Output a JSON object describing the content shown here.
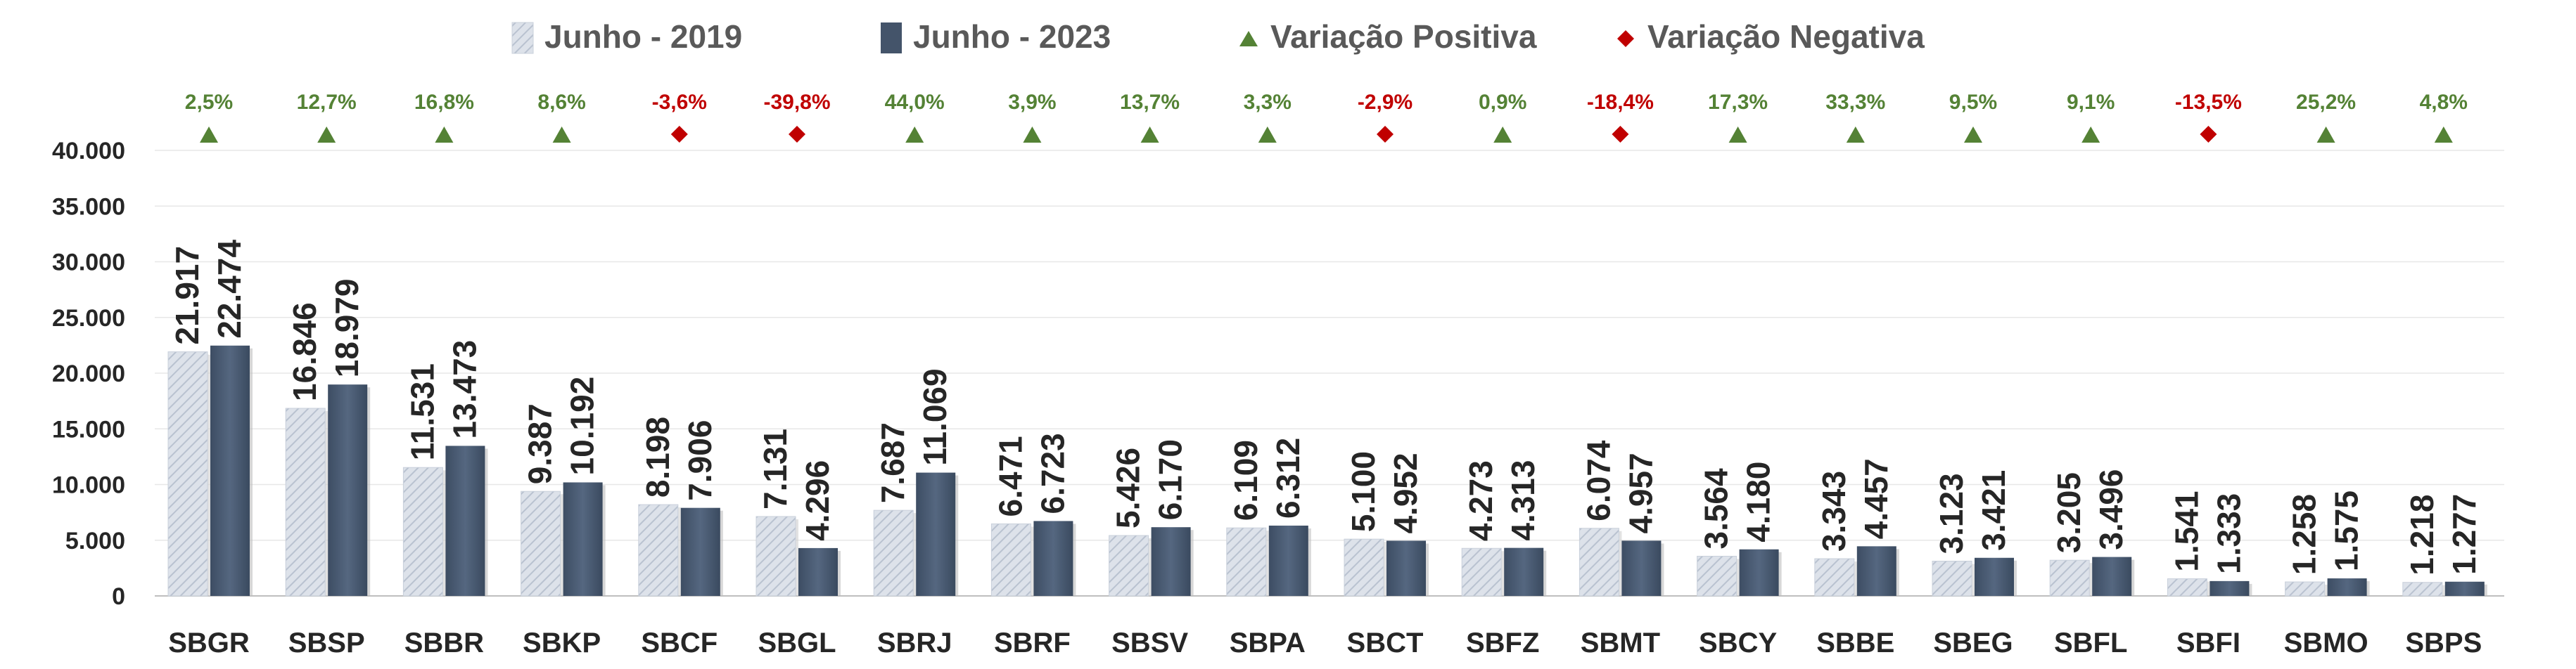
{
  "chart_data": {
    "type": "bar",
    "categories": [
      "SBGR",
      "SBSP",
      "SBBR",
      "SBKP",
      "SBCF",
      "SBGL",
      "SBRJ",
      "SBRF",
      "SBSV",
      "SBPA",
      "SBCT",
      "SBFZ",
      "SBMT",
      "SBCY",
      "SBBE",
      "SBEG",
      "SBFL",
      "SBFI",
      "SBMO",
      "SBPS"
    ],
    "series": [
      {
        "name": "Junho - 2019",
        "values": [
          21917,
          16846,
          11531,
          9387,
          8198,
          7131,
          7687,
          6471,
          5426,
          6109,
          5100,
          4273,
          6074,
          3564,
          3343,
          3123,
          3205,
          1541,
          1258,
          1218
        ],
        "labels": [
          "21.917",
          "16.846",
          "11.531",
          "9.387",
          "8.198",
          "7.131",
          "7.687",
          "6.471",
          "5.426",
          "6.109",
          "5.100",
          "4.273",
          "6.074",
          "3.564",
          "3.343",
          "3.123",
          "3.205",
          "1.541",
          "1.258",
          "1.218"
        ]
      },
      {
        "name": "Junho - 2023",
        "values": [
          22474,
          18979,
          13473,
          10192,
          7906,
          4296,
          11069,
          6723,
          6170,
          6312,
          4952,
          4313,
          4957,
          4180,
          4457,
          3421,
          3496,
          1333,
          1575,
          1277
        ],
        "labels": [
          "22.474",
          "18.979",
          "13.473",
          "10.192",
          "7.906",
          "4.296",
          "11.069",
          "6.723",
          "6.170",
          "6.312",
          "4.952",
          "4.313",
          "4.957",
          "4.180",
          "4.457",
          "3.421",
          "3.496",
          "1.333",
          "1.575",
          "1.277"
        ]
      }
    ],
    "variation": {
      "labels": [
        "2,5%",
        "12,7%",
        "16,8%",
        "8,6%",
        "-3,6%",
        "-39,8%",
        "44,0%",
        "3,9%",
        "13,7%",
        "3,3%",
        "-2,9%",
        "0,9%",
        "-18,4%",
        "17,3%",
        "33,3%",
        "9,5%",
        "9,1%",
        "-13,5%",
        "25,2%",
        "4,8%"
      ],
      "values": [
        2.5,
        12.7,
        16.8,
        8.6,
        -3.6,
        -39.8,
        44.0,
        3.9,
        13.7,
        3.3,
        -2.9,
        0.9,
        -18.4,
        17.3,
        33.3,
        9.5,
        9.1,
        -13.5,
        25.2,
        4.8
      ]
    },
    "legend": [
      {
        "label": "Junho - 2019",
        "marker": "bar-2019"
      },
      {
        "label": "Junho - 2023",
        "marker": "bar-2023"
      },
      {
        "label": "Variação Positiva",
        "marker": "triangle"
      },
      {
        "label": "Variação Negativa",
        "marker": "diamond"
      }
    ],
    "y_ticks": [
      "0",
      "5.000",
      "10.000",
      "15.000",
      "20.000",
      "25.000",
      "30.000",
      "35.000",
      "40.000"
    ],
    "ylim": [
      0,
      40000
    ],
    "grid": true,
    "legend_position": "top",
    "colors": {
      "bar_2019": "#d5dbe6",
      "bar_2023": "#44546a",
      "positive": "#548235",
      "negative": "#c00000",
      "text": "#262626",
      "legend_text": "#595959"
    }
  }
}
